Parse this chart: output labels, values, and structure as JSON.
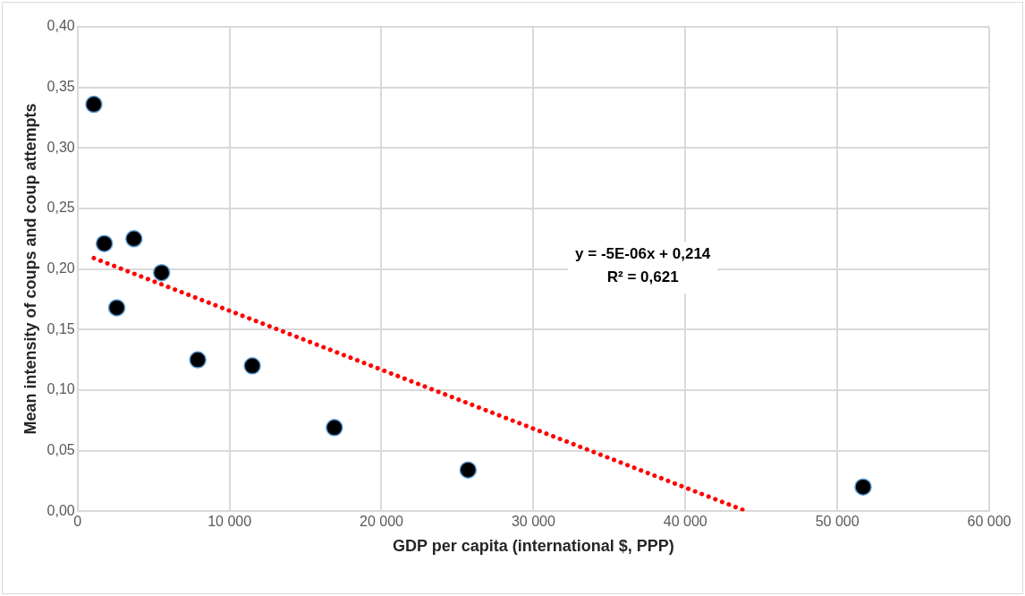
{
  "chart_data": {
    "type": "scatter",
    "xlabel": "GDP per capita (international $, PPP)",
    "ylabel": "Mean intensity of coups and coup attempts",
    "x": [
      1070,
      1760,
      3710,
      2580,
      5530,
      7910,
      11500,
      16900,
      25700,
      51700
    ],
    "series": [
      {
        "color": "#000000",
        "marker": "circle",
        "values": [
          0.336,
          0.221,
          0.225,
          0.168,
          0.197,
          0.125,
          0.12,
          0.069,
          0.034,
          0.02
        ]
      },
      {
        "type": "line",
        "line_style": "dotted",
        "marker": "none",
        "color": "#ff0000",
        "x": [
          1070,
          44000
        ],
        "values": [
          0.209,
          0
        ]
      }
    ],
    "xlim": [
      0,
      60000
    ],
    "ylim": [
      0,
      0.4
    ],
    "xticks": [
      0,
      {
        "value": 10000,
        "label": "10 000"
      },
      {
        "value": 20000,
        "label": "20 000"
      },
      {
        "value": 30000,
        "label": "30 000"
      },
      {
        "value": 40000,
        "label": "40 000"
      },
      {
        "value": 50000,
        "label": "50 000"
      },
      {
        "value": 60000,
        "label": "60 000"
      }
    ],
    "yticks": [
      {
        "value": 0,
        "label": "0,00"
      },
      {
        "value": 0.05,
        "label": "0,05"
      },
      {
        "value": 0.1,
        "label": "0,10"
      },
      {
        "value": 0.15,
        "label": "0,15"
      },
      {
        "value": 0.2,
        "label": "0,20"
      },
      {
        "value": 0.25,
        "label": "0,25"
      },
      {
        "value": 0.3,
        "label": "0,30"
      },
      {
        "value": 0.35,
        "label": "0,35"
      },
      {
        "value": 0.4,
        "label": "0,40"
      }
    ],
    "annotations": [
      "y = -5E-06x + 0,214",
      "R² = 0,621"
    ],
    "grid": true,
    "legend": false
  }
}
